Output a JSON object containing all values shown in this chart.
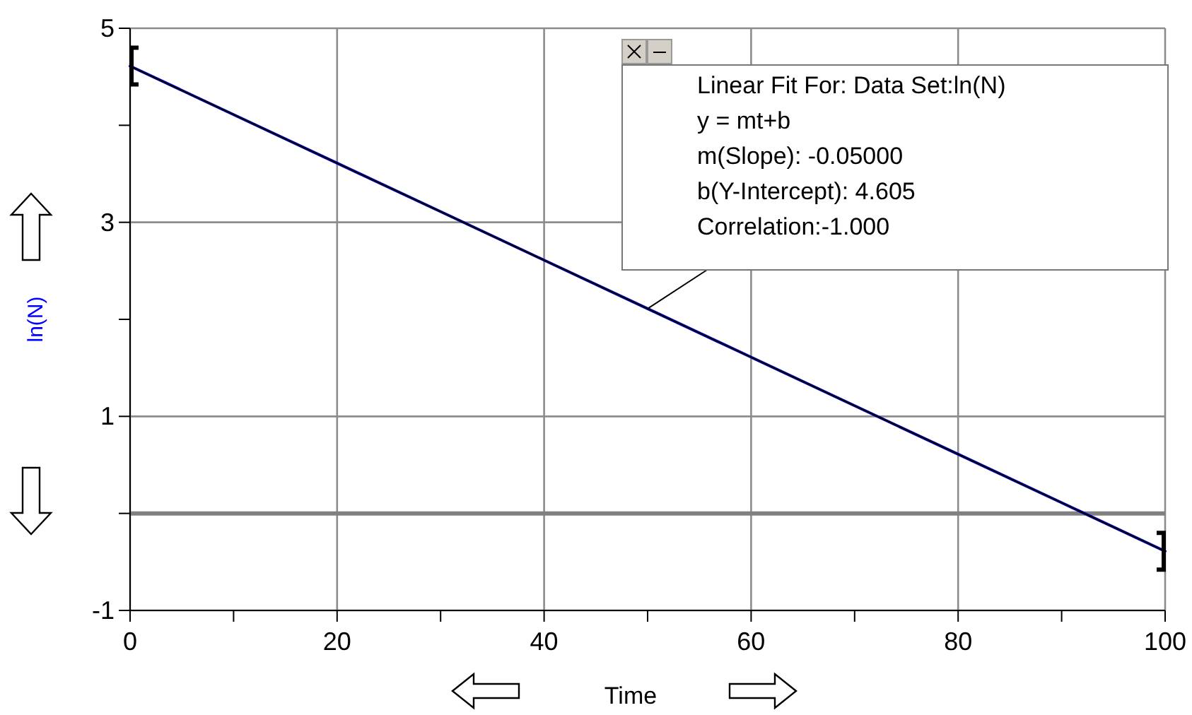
{
  "chart_data": {
    "type": "line",
    "xlabel": "Time",
    "ylabel": "ln(N)",
    "x": [
      0,
      10,
      20,
      30,
      40,
      50,
      60,
      70,
      80,
      90,
      100
    ],
    "series": [
      {
        "color": "#0000ff",
        "values": [
          4.61,
          4.11,
          3.61,
          3.11,
          2.61,
          2.11,
          1.61,
          1.11,
          0.61,
          0.11,
          -0.39
        ]
      },
      {
        "type": "line",
        "color": "#000000",
        "x": [
          0,
          100
        ],
        "values": [
          4.61,
          -0.39
        ]
      }
    ],
    "xlim": [
      0,
      100
    ],
    "ylim": [
      -1,
      5
    ],
    "xticks": [
      0,
      {
        "value": 10,
        "label": null
      },
      20,
      {
        "value": 30,
        "label": null
      },
      40,
      {
        "value": 50,
        "label": null
      },
      60,
      {
        "value": 70,
        "label": null
      },
      80,
      {
        "value": 90,
        "label": null
      },
      100
    ],
    "yticks": [
      -1,
      {
        "value": 0,
        "label": null
      },
      1,
      {
        "value": 2,
        "label": null
      },
      3,
      {
        "value": 4,
        "label": null
      },
      5
    ],
    "grid": true,
    "marker": "none",
    "line_style": "solid",
    "ref_lines": [
      {
        "axis": "y",
        "value": 0,
        "color": "#808080"
      }
    ],
    "annotations": [
      "Linear Fit For:  Data Set:ln(N)",
      "y = mt+b",
      "m(Slope): -0.05000",
      "b(Y-Intercept): 4.605",
      {
        "text": "Correlation:-1.000",
        "x": 50,
        "y": 2.11
      }
    ]
  }
}
